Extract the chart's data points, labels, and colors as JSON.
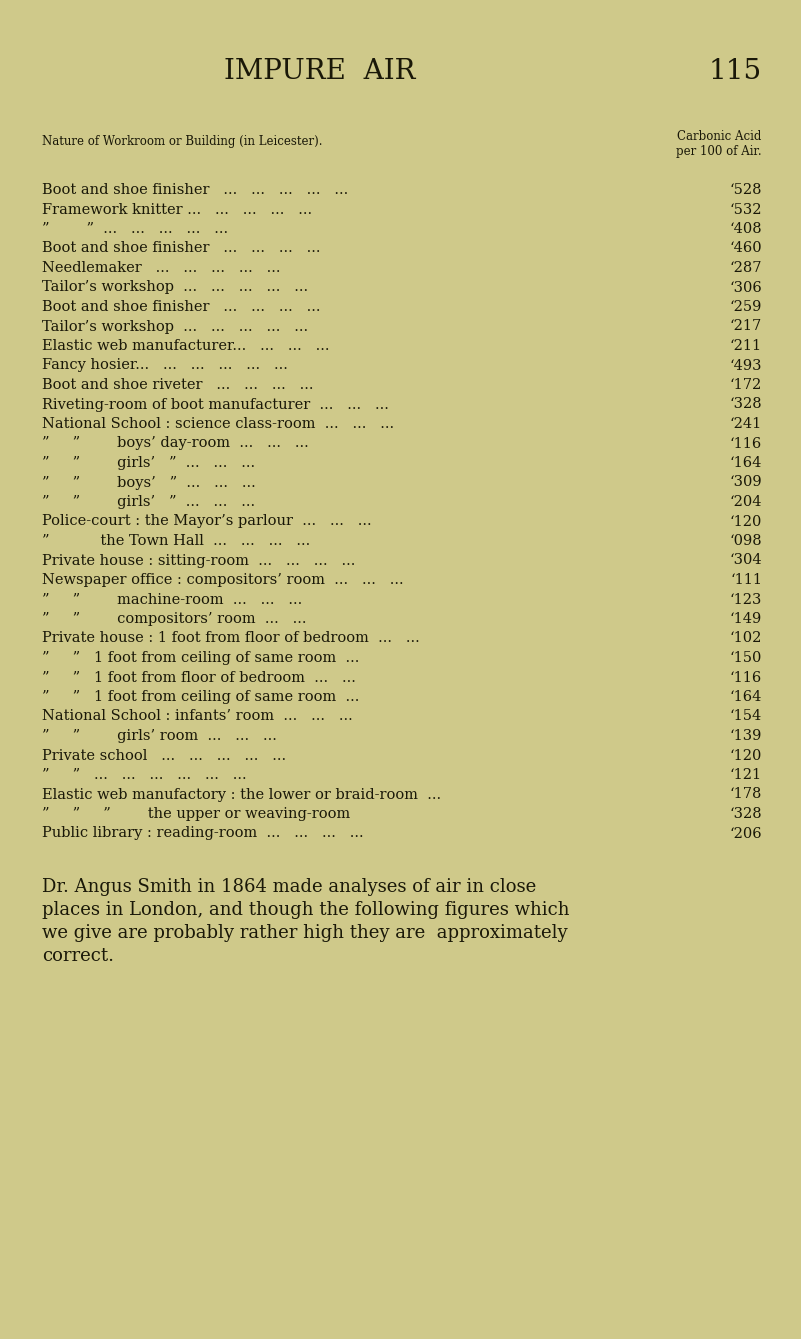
{
  "bg_color": "#cfc98a",
  "title": "IMPURE  AIR",
  "page_number": "115",
  "header_col1": "Nature of Workroom or Building (in Leicester).",
  "header_col2": "Carbonic Acid\nper 100 of Air.",
  "rows": [
    {
      "label": "Boot and shoe finisher   ...   ...   ...   ...   ...",
      "value": "‘528"
    },
    {
      "label": "Framework knitter ...   ...   ...   ...   ...",
      "value": "‘532"
    },
    {
      "label": "”        ”  ...   ...   ...   ...   ...",
      "value": "‘408"
    },
    {
      "label": "Boot and shoe finisher   ...   ...   ...   ...",
      "value": "‘460"
    },
    {
      "label": "Needlemaker   ...   ...   ...   ...   ...",
      "value": "‘287"
    },
    {
      "label": "Tailor’s workshop  ...   ...   ...   ...   ...",
      "value": "‘306"
    },
    {
      "label": "Boot and shoe finisher   ...   ...   ...   ...",
      "value": "‘259"
    },
    {
      "label": "Tailor’s workshop  ...   ...   ...   ...   ...",
      "value": "‘217"
    },
    {
      "label": "Elastic web manufacturer...   ...   ...   ...",
      "value": "‘211"
    },
    {
      "label": "Fancy hosier...   ...   ...   ...   ...   ...",
      "value": "‘493"
    },
    {
      "label": "Boot and shoe riveter   ...   ...   ...   ...",
      "value": "‘172"
    },
    {
      "label": "Riveting-room of boot manufacturer  ...   ...   ...",
      "value": "‘328"
    },
    {
      "label": "National School : science class-room  ...   ...   ...",
      "value": "‘241"
    },
    {
      "label": "”     ”        boys’ day-room  ...   ...   ...",
      "value": "‘116"
    },
    {
      "label": "”     ”        girls’   ”  ...   ...   ...",
      "value": "‘164"
    },
    {
      "label": "”     ”        boys’   ”  ...   ...   ...",
      "value": "‘309"
    },
    {
      "label": "”     ”        girls’   ”  ...   ...   ...",
      "value": "‘204"
    },
    {
      "label": "Police-court : the Mayor’s parlour  ...   ...   ...",
      "value": "‘120"
    },
    {
      "label": "”           the Town Hall  ...   ...   ...   ...",
      "value": "‘098"
    },
    {
      "label": "Private house : sitting-room  ...   ...   ...   ...",
      "value": "‘304"
    },
    {
      "label": "Newspaper office : compositors’ room  ...   ...   ...",
      "value": "‘111"
    },
    {
      "label": "”     ”        machine-room  ...   ...   ...",
      "value": "‘123"
    },
    {
      "label": "”     ”        compositors’ room  ...   ...",
      "value": "‘149"
    },
    {
      "label": "Private house : 1 foot from floor of bedroom  ...   ...",
      "value": "‘102"
    },
    {
      "label": "”     ”   1 foot from ceiling of same room  ...",
      "value": "‘150"
    },
    {
      "label": "”     ”   1 foot from floor of bedroom  ...   ...",
      "value": "‘116"
    },
    {
      "label": "”     ”   1 foot from ceiling of same room  ...",
      "value": "‘164"
    },
    {
      "label": "National School : infants’ room  ...   ...   ...",
      "value": "‘154"
    },
    {
      "label": "”     ”        girls’ room  ...   ...   ...",
      "value": "‘139"
    },
    {
      "label": "Private school   ...   ...   ...   ...   ...",
      "value": "‘120"
    },
    {
      "label": "”     ”   ...   ...   ...   ...   ...   ...",
      "value": "‘121"
    },
    {
      "label": "Elastic web manufactory : the lower or braid-room  ...",
      "value": "‘178"
    },
    {
      "label": "”     ”     ”        the upper or weaving-room",
      "value": "‘328"
    },
    {
      "label": "Public library : reading-room  ...   ...   ...   ...",
      "value": "‘206"
    }
  ],
  "footer_line1": "Dr. Angus Smith in 1864 made analyses of air in close",
  "footer_line2": "places in London, and though the following figures which",
  "footer_line3": "we give are probably rather high they are  approximately",
  "footer_line4": "correct.",
  "text_color": "#1a1808",
  "font_size_title": 20,
  "font_size_page": 20,
  "font_size_rows": 10.5,
  "font_size_header_label": 8.5,
  "font_size_footer": 13.0
}
